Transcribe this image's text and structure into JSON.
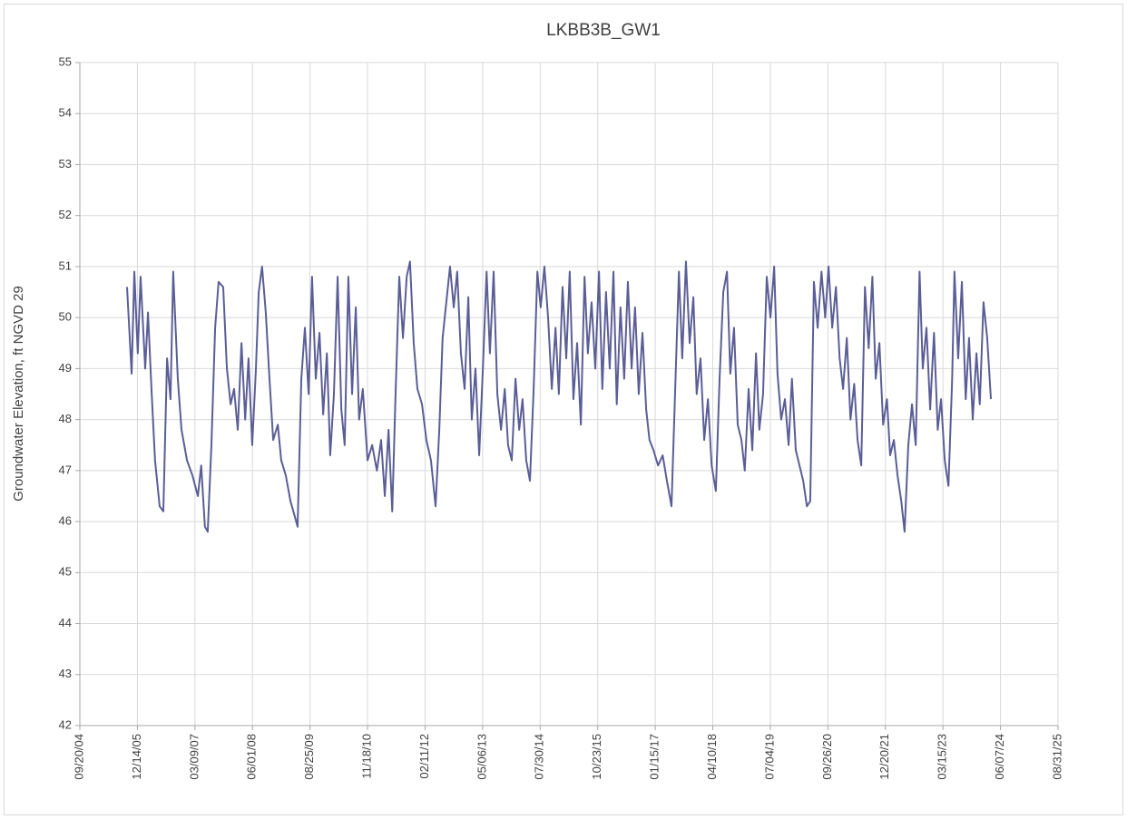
{
  "chart_data": {
    "type": "line",
    "title": "LKBB3B_GW1",
    "y_label": "Groundwater Elevation, ft NGVD 29",
    "color": "#5b5e96",
    "grid": true,
    "xlim": [
      "2004-09-20",
      "2025-08-31"
    ],
    "xticks": [
      {
        "value": "2004-09-20",
        "label": "09/20/04"
      },
      {
        "value": "2005-12-14",
        "label": "12/14/05"
      },
      {
        "value": "2007-03-09",
        "label": "03/09/07"
      },
      {
        "value": "2008-06-01",
        "label": "06/01/08"
      },
      {
        "value": "2009-08-25",
        "label": "08/25/09"
      },
      {
        "value": "2010-11-18",
        "label": "11/18/10"
      },
      {
        "value": "2012-02-11",
        "label": "02/11/12"
      },
      {
        "value": "2013-05-06",
        "label": "05/06/13"
      },
      {
        "value": "2014-07-30",
        "label": "07/30/14"
      },
      {
        "value": "2015-10-23",
        "label": "10/23/15"
      },
      {
        "value": "2017-01-15",
        "label": "01/15/17"
      },
      {
        "value": "2018-04-10",
        "label": "04/10/18"
      },
      {
        "value": "2019-07-04",
        "label": "07/04/19"
      },
      {
        "value": "2020-09-26",
        "label": "09/26/20"
      },
      {
        "value": "2021-12-20",
        "label": "12/20/21"
      },
      {
        "value": "2023-03-15",
        "label": "03/15/23"
      },
      {
        "value": "2024-06-07",
        "label": "06/07/24"
      },
      {
        "value": "2025-08-31",
        "label": "08/31/25"
      }
    ],
    "ylim": [
      42,
      55
    ],
    "yticks": [
      42,
      43,
      44,
      45,
      46,
      47,
      48,
      49,
      50,
      51,
      52,
      53,
      54,
      55
    ],
    "x": [
      "2005-09-24",
      "2005-10-30",
      "2005-11-20",
      "2005-12-17",
      "2006-01-08",
      "2006-02-13",
      "2006-03-07",
      "2006-04-05",
      "2006-05-01",
      "2006-06-06",
      "2006-07-05",
      "2006-08-03",
      "2006-08-30",
      "2006-09-20",
      "2006-10-26",
      "2006-11-24",
      "2007-01-06",
      "2007-02-18",
      "2007-04-01",
      "2007-04-27",
      "2007-05-26",
      "2007-06-17",
      "2007-07-16",
      "2007-08-14",
      "2007-09-10",
      "2007-10-16",
      "2007-11-14",
      "2007-12-13",
      "2008-01-09",
      "2008-02-07",
      "2008-03-07",
      "2008-04-05",
      "2008-05-01",
      "2008-05-30",
      "2008-06-28",
      "2008-07-20",
      "2008-08-15",
      "2008-09-13",
      "2008-10-12",
      "2008-11-10",
      "2008-12-16",
      "2009-01-12",
      "2009-02-17",
      "2009-03-25",
      "2009-04-28",
      "2009-05-20",
      "2009-06-18",
      "2009-07-16",
      "2009-08-14",
      "2009-09-10",
      "2009-10-09",
      "2009-11-07",
      "2009-12-06",
      "2010-01-04",
      "2010-01-30",
      "2010-02-28",
      "2010-03-29",
      "2010-04-27",
      "2010-05-23",
      "2010-06-21",
      "2010-07-20",
      "2010-08-18",
      "2010-09-13",
      "2010-10-12",
      "2010-11-18",
      "2010-12-24",
      "2011-01-30",
      "2011-03-04",
      "2011-04-02",
      "2011-05-01",
      "2011-05-30",
      "2011-06-25",
      "2011-07-24",
      "2011-08-22",
      "2011-09-20",
      "2011-10-16",
      "2011-11-14",
      "2011-12-13",
      "2012-01-18",
      "2012-02-21",
      "2012-03-28",
      "2012-05-03",
      "2012-06-01",
      "2012-06-27",
      "2012-07-26",
      "2012-08-24",
      "2012-09-22",
      "2012-10-19",
      "2012-11-17",
      "2012-12-16",
      "2013-01-14",
      "2013-02-10",
      "2013-03-11",
      "2013-04-09",
      "2013-05-08",
      "2013-06-06",
      "2013-07-02",
      "2013-07-31",
      "2013-08-29",
      "2013-09-27",
      "2013-10-26",
      "2013-11-21",
      "2013-12-20",
      "2014-01-18",
      "2014-02-16",
      "2014-03-14",
      "2014-04-12",
      "2014-05-11",
      "2014-06-09",
      "2014-07-08",
      "2014-08-03",
      "2014-09-01",
      "2014-09-30",
      "2014-10-29",
      "2014-11-27",
      "2014-12-23",
      "2015-01-21",
      "2015-02-19",
      "2015-03-18",
      "2015-04-16",
      "2015-05-15",
      "2015-06-13",
      "2015-07-12",
      "2015-08-07",
      "2015-09-05",
      "2015-10-04",
      "2015-11-02",
      "2015-11-28",
      "2015-12-27",
      "2016-01-25",
      "2016-02-23",
      "2016-03-20",
      "2016-04-18",
      "2016-05-17",
      "2016-06-15",
      "2016-07-14",
      "2016-08-10",
      "2016-09-08",
      "2016-10-07",
      "2016-11-05",
      "2016-12-01",
      "2017-01-01",
      "2017-02-06",
      "2017-03-14",
      "2017-04-16",
      "2017-05-22",
      "2017-06-20",
      "2017-07-19",
      "2017-08-14",
      "2017-09-12",
      "2017-10-11",
      "2017-11-09",
      "2017-12-05",
      "2018-01-04",
      "2018-02-02",
      "2018-03-03",
      "2018-04-01",
      "2018-05-04",
      "2018-06-02",
      "2018-07-01",
      "2018-07-30",
      "2018-08-25",
      "2018-09-23",
      "2018-10-22",
      "2018-11-20",
      "2018-12-16",
      "2019-01-15",
      "2019-02-13",
      "2019-03-14",
      "2019-04-09",
      "2019-05-08",
      "2019-06-06",
      "2019-07-05",
      "2019-08-03",
      "2019-08-29",
      "2019-09-27",
      "2019-10-26",
      "2019-11-24",
      "2019-12-20",
      "2020-01-19",
      "2020-02-17",
      "2020-03-17",
      "2020-04-15",
      "2020-05-11",
      "2020-06-09",
      "2020-07-08",
      "2020-08-07",
      "2020-09-05",
      "2020-10-01",
      "2020-10-30",
      "2020-11-28",
      "2020-12-27",
      "2021-01-23",
      "2021-02-21",
      "2021-03-22",
      "2021-04-20",
      "2021-05-16",
      "2021-06-14",
      "2021-07-13",
      "2021-08-11",
      "2021-09-09",
      "2021-10-05",
      "2021-11-03",
      "2021-12-02",
      "2022-01-01",
      "2022-01-26",
      "2022-02-24",
      "2022-03-25",
      "2022-04-23",
      "2022-05-19",
      "2022-06-17",
      "2022-07-16",
      "2022-08-14",
      "2022-09-13",
      "2022-10-08",
      "2022-11-06",
      "2022-12-05",
      "2023-01-04",
      "2023-02-02",
      "2023-02-28",
      "2023-03-29",
      "2023-04-27",
      "2023-05-26",
      "2023-06-13",
      "2023-07-12",
      "2023-08-10",
      "2023-09-09",
      "2023-10-05",
      "2023-11-03",
      "2023-12-02",
      "2023-12-28",
      "2024-01-26",
      "2024-02-24",
      "2024-03-24"
    ],
    "values": [
      50.6,
      48.9,
      50.9,
      49.3,
      50.8,
      49.0,
      50.1,
      48.5,
      47.2,
      46.3,
      46.2,
      49.2,
      48.4,
      50.9,
      48.8,
      47.8,
      47.2,
      46.9,
      46.5,
      47.1,
      45.9,
      45.8,
      47.5,
      49.8,
      50.7,
      50.6,
      49.0,
      48.3,
      48.6,
      47.8,
      49.5,
      48.0,
      49.2,
      47.5,
      49.0,
      50.5,
      51.0,
      50.1,
      48.8,
      47.6,
      47.9,
      47.2,
      46.9,
      46.4,
      46.1,
      45.9,
      48.8,
      49.8,
      48.5,
      50.8,
      48.8,
      49.7,
      48.1,
      49.3,
      47.3,
      48.5,
      50.8,
      48.2,
      47.5,
      50.8,
      48.5,
      50.2,
      48.0,
      48.6,
      47.2,
      47.5,
      47.0,
      47.6,
      46.5,
      47.8,
      46.2,
      48.5,
      50.8,
      49.6,
      50.8,
      51.1,
      49.5,
      48.6,
      48.3,
      47.6,
      47.2,
      46.3,
      47.8,
      49.6,
      50.3,
      51.0,
      50.2,
      50.9,
      49.3,
      48.6,
      50.4,
      48.0,
      49.0,
      47.3,
      49.0,
      50.9,
      49.3,
      50.9,
      48.5,
      47.8,
      48.6,
      47.5,
      47.2,
      48.8,
      47.8,
      48.4,
      47.2,
      46.8,
      48.6,
      50.9,
      50.2,
      51.0,
      50.0,
      48.6,
      49.8,
      48.5,
      50.6,
      49.2,
      50.9,
      48.4,
      49.5,
      47.9,
      50.8,
      49.3,
      50.3,
      49.0,
      50.9,
      48.6,
      50.5,
      49.0,
      50.9,
      48.3,
      50.2,
      48.8,
      50.7,
      49.0,
      50.2,
      48.5,
      49.7,
      48.2,
      47.6,
      47.4,
      47.1,
      47.3,
      46.8,
      46.3,
      48.6,
      50.9,
      49.2,
      51.1,
      49.5,
      50.4,
      48.5,
      49.2,
      47.6,
      48.4,
      47.1,
      46.6,
      48.8,
      50.5,
      50.9,
      48.9,
      49.8,
      47.9,
      47.6,
      47.0,
      48.6,
      47.4,
      49.3,
      47.8,
      48.5,
      50.8,
      50.0,
      51.0,
      48.9,
      48.0,
      48.4,
      47.5,
      48.8,
      47.4,
      47.1,
      46.8,
      46.3,
      46.4,
      50.7,
      49.8,
      50.9,
      50.0,
      51.0,
      49.8,
      50.6,
      49.2,
      48.6,
      49.6,
      48.0,
      48.7,
      47.6,
      47.1,
      50.6,
      49.4,
      50.8,
      48.8,
      49.5,
      47.9,
      48.4,
      47.3,
      47.6,
      46.9,
      46.4,
      45.8,
      47.5,
      48.3,
      47.5,
      50.9,
      49.0,
      49.8,
      48.2,
      49.7,
      47.8,
      48.4,
      47.2,
      46.7,
      48.8,
      50.9,
      49.2,
      50.7,
      48.4,
      49.6,
      48.0,
      49.3,
      48.3,
      50.3,
      49.6,
      48.4
    ]
  }
}
